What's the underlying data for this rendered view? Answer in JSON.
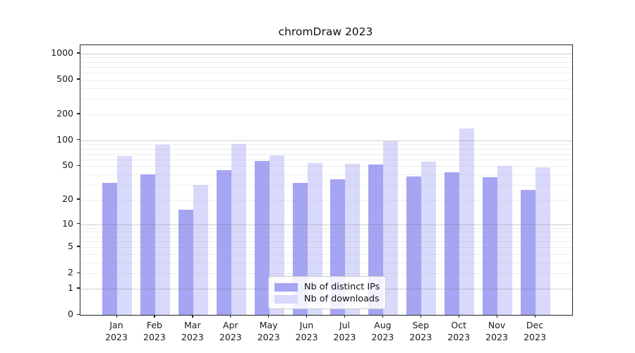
{
  "chart_data": {
    "type": "bar",
    "title": "chromDraw 2023",
    "categories": [
      "Jan",
      "Feb",
      "Mar",
      "Apr",
      "May",
      "Jun",
      "Jul",
      "Aug",
      "Sep",
      "Oct",
      "Nov",
      "Dec"
    ],
    "year_label": "2023",
    "series": [
      {
        "name": "Nb of distinct IPs",
        "color": "#a5a5f3",
        "values": [
          32,
          40,
          15,
          45,
          58,
          32,
          35,
          52,
          38,
          42,
          37,
          26
        ]
      },
      {
        "name": "Nb of downloads",
        "color": "#d9d9fb",
        "values": [
          66,
          89,
          30,
          90,
          67,
          54,
          53,
          98,
          56,
          138,
          50,
          48
        ]
      }
    ],
    "y_scale": "log1p",
    "y_ticks": [
      0,
      1,
      2,
      5,
      10,
      20,
      50,
      100,
      200,
      500,
      1000
    ],
    "y_major_gridlines": [
      1,
      10,
      100,
      1000
    ],
    "y_axis_top_value": 1247,
    "grid": true,
    "legend_position": "lower center",
    "colors": {
      "spine": "#262626",
      "text": "#1a1a1a",
      "background": "#ffffff"
    }
  }
}
